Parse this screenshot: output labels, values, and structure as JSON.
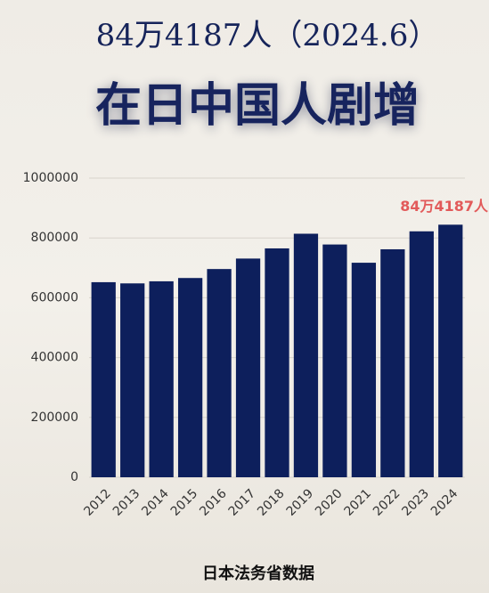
{
  "chart_data": {
    "type": "bar",
    "subtitle": "84万4187人（2024.6）",
    "title": "在日中国人剧增",
    "source": "日本法务省数据",
    "categories": [
      "2012",
      "2013",
      "2014",
      "2015",
      "2016",
      "2017",
      "2018",
      "2019",
      "2020",
      "2021",
      "2022",
      "2023",
      "2024"
    ],
    "values": [
      652000,
      648000,
      655000,
      666000,
      696000,
      731000,
      765000,
      814000,
      778000,
      717000,
      762000,
      822000,
      844187
    ],
    "value_labels": [
      null,
      null,
      null,
      null,
      null,
      null,
      null,
      null,
      null,
      null,
      null,
      null,
      "84万4187人"
    ],
    "color": "#0d1f5c",
    "label_color": "#e25a5a",
    "ylim": [
      0,
      1000000
    ],
    "yticks": [
      0,
      200000,
      400000,
      600000,
      800000,
      1000000
    ],
    "grid": true
  }
}
